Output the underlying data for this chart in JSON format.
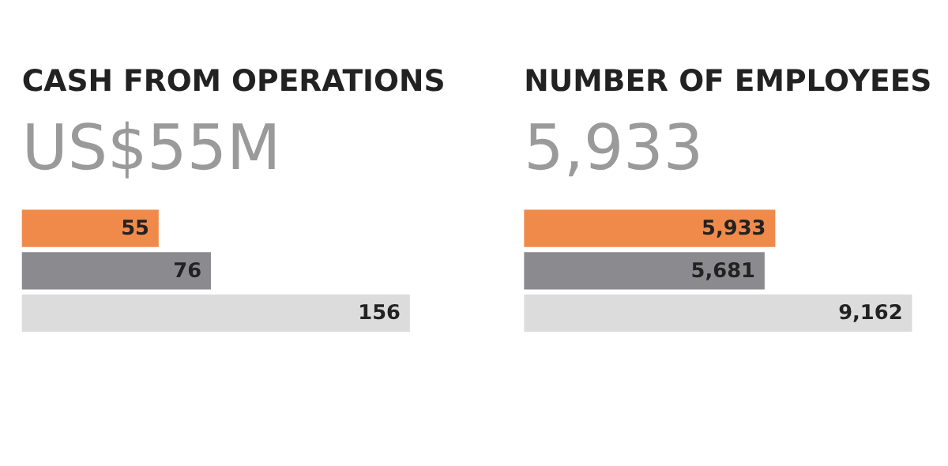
{
  "chart_data": [
    {
      "type": "bar",
      "orientation": "horizontal",
      "title": "CASH FROM OPERATIONS",
      "subtitle": "US$55M",
      "categories": [
        null,
        null,
        null
      ],
      "values": [
        55,
        76,
        156
      ],
      "colors": [
        "#f08a4b",
        "#8b8b8f",
        "#dcdcdd"
      ],
      "data_labels": true
    },
    {
      "type": "bar",
      "orientation": "horizontal",
      "title": "NUMBER OF EMPLOYEES",
      "subtitle": "5,933",
      "categories": [
        null,
        null,
        null
      ],
      "values": [
        5933,
        5681,
        9162
      ],
      "value_labels": [
        "5,933",
        "5,681",
        "9,162"
      ],
      "colors": [
        "#f08a4b",
        "#8b8b8f",
        "#dcdcdd"
      ]
    }
  ]
}
